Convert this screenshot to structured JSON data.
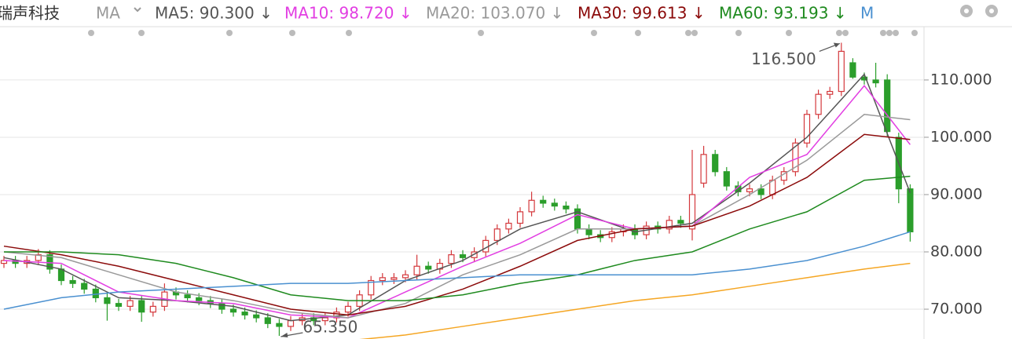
{
  "chart_data": {
    "type": "candlestick",
    "title": "瑞声科技",
    "indicator": "MA",
    "ylim": [
      64.8,
      119.3
    ],
    "yticks": [
      {
        "value": 70,
        "label": "70.000"
      },
      {
        "value": 80,
        "label": "80.000"
      },
      {
        "value": 90,
        "label": "90.000"
      },
      {
        "value": 100,
        "label": "100.000"
      },
      {
        "value": 110,
        "label": "110.000"
      }
    ],
    "grid": true,
    "up_color": "#d4383c",
    "down_color": "#2b9e2b",
    "open": [
      78,
      78.5,
      78,
      78.5,
      79.5,
      77,
      75,
      74.5,
      73.5,
      72,
      71,
      70.5,
      71.5,
      69.5,
      70.5,
      73,
      72.5,
      72,
      71.5,
      71,
      70,
      69.5,
      69,
      68.5,
      67.5,
      67,
      68,
      68.5,
      68,
      68.5,
      69.5,
      70.5,
      72.5,
      75,
      75.2,
      75.5,
      76,
      77.5,
      77,
      78,
      79.5,
      79,
      80,
      82,
      84,
      85,
      87,
      89,
      88.5,
      88,
      87.5,
      84,
      83,
      82.5,
      83.5,
      84,
      83,
      84.5,
      84,
      85.5,
      84,
      92,
      97,
      94,
      91.5,
      90.5,
      91,
      90,
      92.5,
      94,
      99,
      104,
      107.5,
      108,
      113,
      110.5,
      110,
      110,
      100,
      91
    ],
    "high": [
      79.3,
      79.3,
      79.3,
      80.5,
      80.3,
      77.8,
      75.8,
      75.3,
      74.3,
      72.8,
      71.8,
      72.3,
      72.3,
      71.3,
      74.5,
      73.8,
      73.3,
      72.8,
      72.3,
      71.8,
      70.8,
      70.3,
      69.8,
      69.3,
      68.3,
      68.8,
      69.3,
      69.3,
      69.3,
      70.3,
      71.3,
      73.3,
      75.8,
      76.3,
      76.3,
      76.8,
      79.5,
      78.3,
      78.8,
      80.3,
      80.3,
      80.8,
      82.8,
      84.8,
      85.8,
      87.8,
      90.5,
      89.8,
      89.3,
      88.8,
      88.3,
      84.8,
      83.8,
      84.3,
      84.8,
      84.8,
      85.3,
      85.3,
      86.3,
      86.3,
      97.8,
      98.5,
      97.8,
      94.8,
      92.3,
      91.8,
      91.8,
      93.3,
      94.8,
      99.8,
      104.8,
      108.3,
      108.8,
      116.5,
      113.8,
      111.3,
      113,
      111,
      100.8,
      91.8
    ],
    "low": [
      77.2,
      77.2,
      77.2,
      77.7,
      76.2,
      74.2,
      73.7,
      72.7,
      71.2,
      68,
      69.7,
      69.7,
      67.8,
      68.7,
      69.7,
      71.7,
      71.2,
      70.7,
      70.2,
      69.2,
      68.7,
      68.2,
      67.7,
      66.7,
      65.35,
      66.2,
      67.2,
      67.2,
      67.2,
      67.7,
      68.7,
      69.7,
      71.7,
      74.2,
      74.4,
      74.7,
      75.2,
      76.2,
      76.2,
      77.2,
      78.2,
      78.2,
      79.2,
      81.2,
      83.2,
      84.2,
      86.2,
      87.7,
      87.2,
      86.7,
      83.2,
      82.2,
      81.7,
      81.7,
      82.7,
      82.2,
      82.2,
      83.2,
      83.2,
      84.2,
      82,
      91.2,
      93.2,
      90.7,
      89.7,
      89.7,
      89.2,
      89.2,
      91.7,
      93.2,
      98.2,
      103.2,
      106.7,
      107.2,
      110.2,
      109.2,
      108.7,
      100.2,
      88.5,
      81.8
    ],
    "close": [
      78.5,
      78,
      78.5,
      79.5,
      77,
      75,
      74.5,
      73.5,
      72,
      71,
      70.5,
      71.5,
      69.5,
      70.5,
      73,
      72.5,
      72,
      71.5,
      71,
      70,
      69.5,
      69,
      68.5,
      67.5,
      67,
      68,
      68.5,
      68,
      68.5,
      69.5,
      70.5,
      72.5,
      75,
      75.5,
      75.5,
      76,
      77.5,
      77,
      78,
      79.5,
      79,
      80,
      82,
      84,
      85,
      87,
      89,
      88.5,
      88,
      87.5,
      84,
      83,
      82.5,
      83.5,
      84,
      83,
      84.5,
      84,
      85.5,
      85,
      90,
      97,
      94,
      91.5,
      90.5,
      91,
      90,
      92.5,
      94,
      99,
      104,
      107.5,
      108,
      115,
      110.5,
      110,
      109.5,
      101,
      91,
      83.5
    ],
    "line_x": [
      0,
      5,
      10,
      15,
      20,
      25,
      30,
      35,
      40,
      45,
      50,
      55,
      60,
      65,
      70,
      75,
      79
    ],
    "series": [
      {
        "name": "MA5: 90.300 ↓",
        "color": "#555555",
        "values": [
          79,
          77,
          72,
          71.5,
          70.5,
          68,
          69,
          75,
          78.5,
          84,
          87,
          83.5,
          85,
          92,
          100,
          111,
          90.3
        ]
      },
      {
        "name": "MA10: 98.720 ↓",
        "color": "#e23ee2",
        "values": [
          78.5,
          78,
          73,
          71.5,
          71,
          69,
          68.5,
          73,
          77.5,
          81.5,
          86.5,
          84,
          84.5,
          93,
          97,
          109,
          98.72
        ]
      },
      {
        "name": "MA20: 103.070 ↓",
        "color": "#999999",
        "values": [
          80,
          79,
          76,
          73,
          71.5,
          69.5,
          68.5,
          71,
          76,
          79.5,
          84,
          84,
          84.5,
          90,
          96,
          104,
          103.07
        ]
      },
      {
        "name": "MA30: 99.613 ↓",
        "color": "#8b0a0a",
        "values": [
          81,
          79.5,
          77.5,
          75,
          72.5,
          70,
          69,
          70.5,
          73.5,
          77.5,
          82,
          84,
          84.5,
          88,
          93,
          100.5,
          99.613
        ]
      },
      {
        "name": "MA60: 93.193 ↓",
        "color": "#1e8a1e",
        "values": [
          80,
          80,
          79.5,
          78,
          75.5,
          72.5,
          71.5,
          71.5,
          72.5,
          74.5,
          76,
          78.5,
          80,
          84,
          87,
          92.5,
          93.193
        ]
      },
      {
        "name": "M",
        "color": "#4a90d0",
        "values": [
          70,
          72,
          73,
          73.5,
          74,
          74.5,
          74.5,
          75,
          75.5,
          76,
          76,
          76,
          76,
          77,
          78.5,
          81,
          83.5
        ]
      },
      {
        "color": "#f5a623",
        "values": [
          null,
          null,
          null,
          null,
          null,
          null,
          64.5,
          65.5,
          67,
          68.5,
          70,
          71.5,
          72.5,
          74,
          75.5,
          77,
          78
        ]
      }
    ],
    "annotations": [
      {
        "value": 116.5,
        "label": "116.500"
      },
      {
        "value": 65.35,
        "label": "65.350"
      }
    ]
  }
}
